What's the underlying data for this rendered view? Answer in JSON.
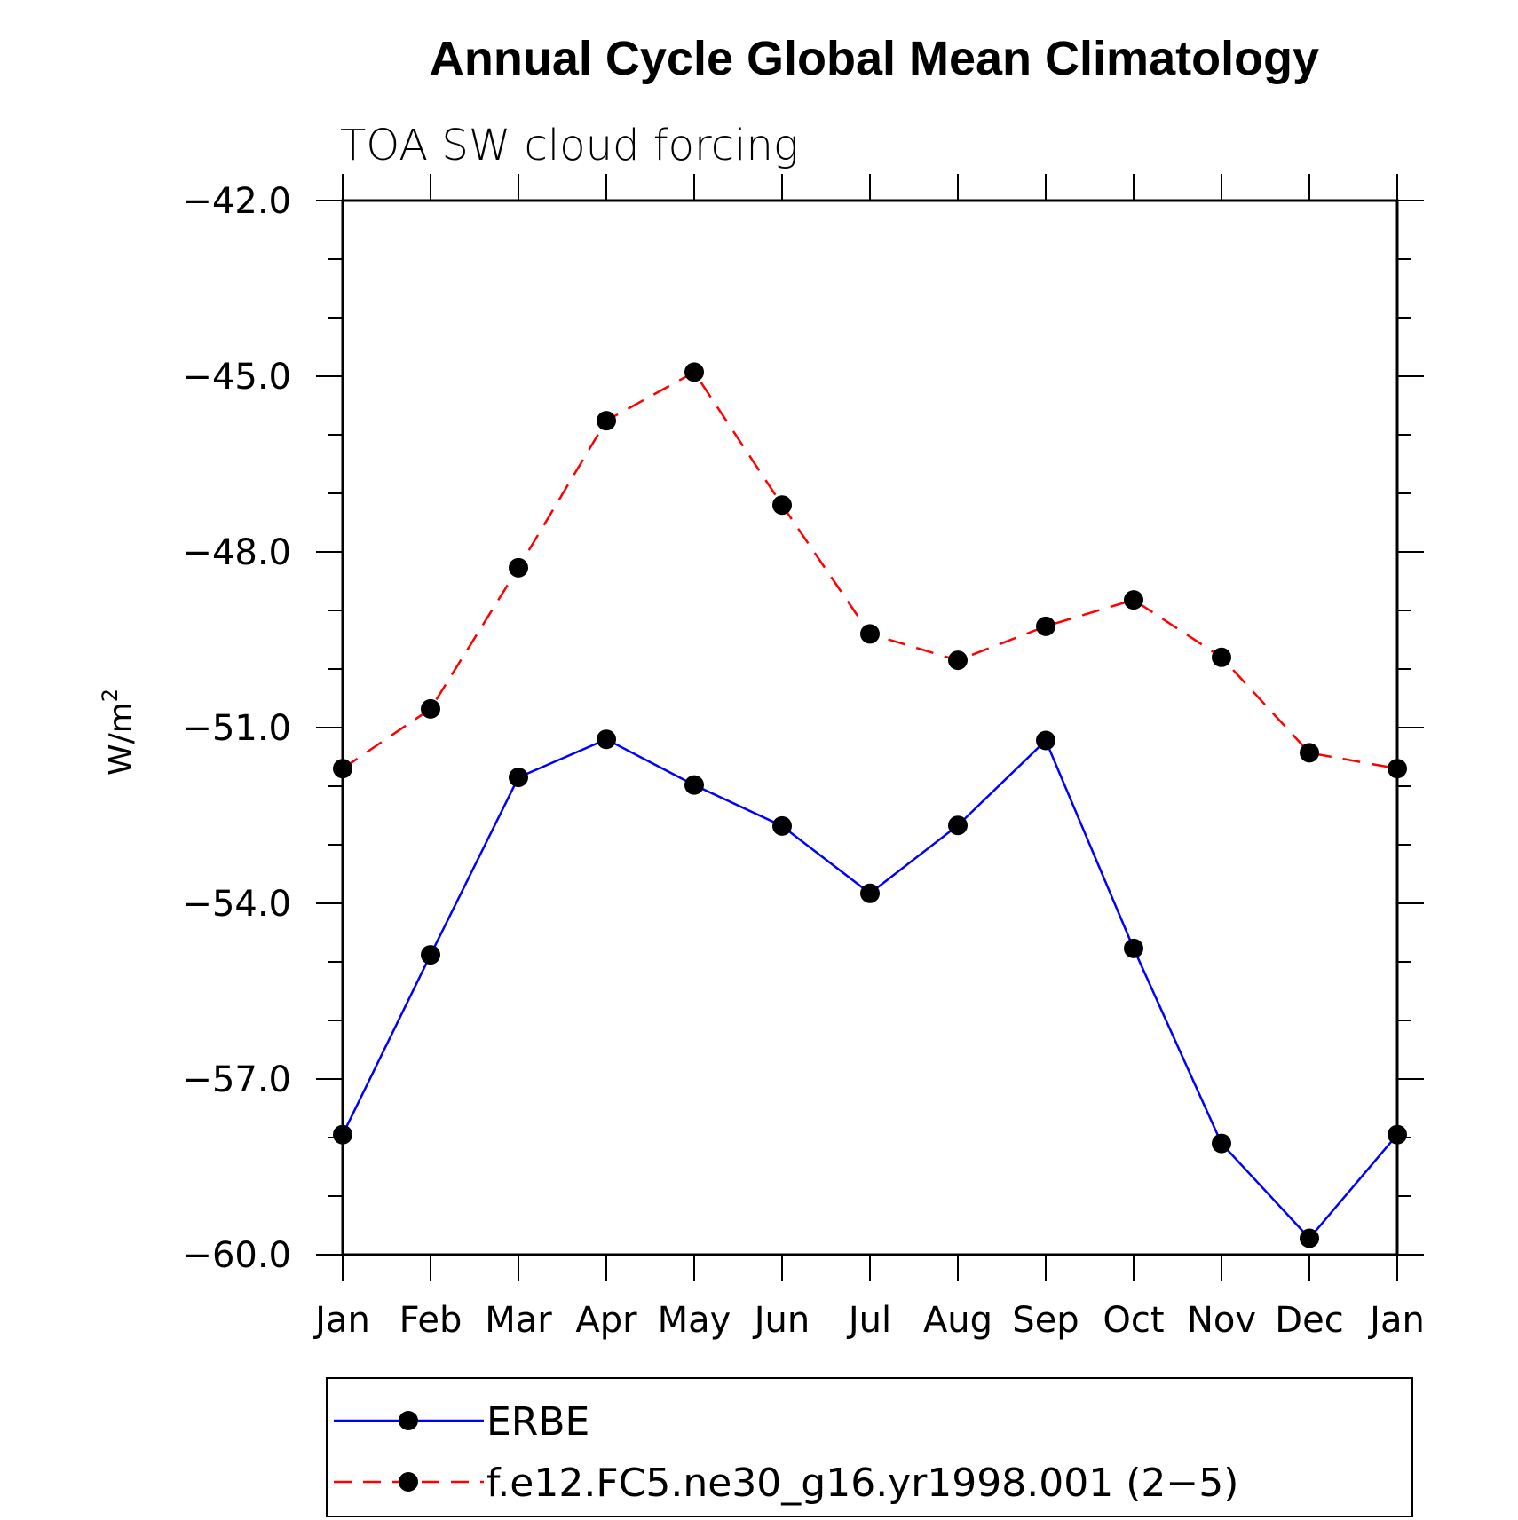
{
  "chart_data": {
    "type": "line",
    "title": "Annual Cycle Global Mean Climatology",
    "subtitle": "TOA SW cloud forcing",
    "ylabel": "W/m",
    "ylabel_sup": "2",
    "categories": [
      "Jan",
      "Feb",
      "Mar",
      "Apr",
      "May",
      "Jun",
      "Jul",
      "Aug",
      "Sep",
      "Oct",
      "Nov",
      "Dec",
      "Jan"
    ],
    "ylim": [
      -60.0,
      -42.0
    ],
    "yticks": [
      -42.0,
      -45.0,
      -48.0,
      -51.0,
      -54.0,
      -57.0,
      -60.0
    ],
    "ytick_labels": [
      "−42.0",
      "−45.0",
      "−48.0",
      "−51.0",
      "−54.0",
      "−57.0",
      "−60.0"
    ],
    "grid": false,
    "legend_position": "bottom",
    "series": [
      {
        "name": "ERBE",
        "color": "#0000ff",
        "dash": "solid",
        "values": [
          -57.95,
          -54.88,
          -51.85,
          -51.2,
          -51.98,
          -52.68,
          -53.83,
          -52.67,
          -51.22,
          -54.77,
          -58.1,
          -59.72,
          -57.95
        ]
      },
      {
        "name": "f.e12.FC5.ne30_g16.yr1998.001 (2−5)",
        "color": "#ff0000",
        "dash": "dashed",
        "values": [
          -51.7,
          -50.68,
          -48.27,
          -45.76,
          -44.93,
          -47.2,
          -49.4,
          -49.85,
          -49.27,
          -48.82,
          -49.8,
          -51.43,
          -51.7
        ]
      }
    ]
  },
  "colors": {
    "axis": "#000000",
    "marker": "#000000"
  }
}
